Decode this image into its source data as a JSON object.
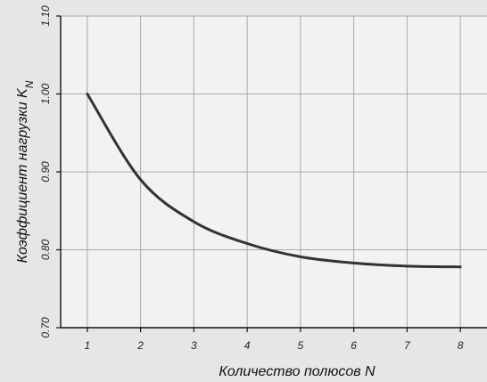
{
  "chart_data": {
    "type": "line",
    "xlabel": "Количество полюсов N",
    "ylabel_main": "Коэффициент нагрузки K",
    "ylabel_sub": "N",
    "x": [
      1,
      2,
      3,
      4,
      5,
      6,
      7,
      8
    ],
    "x_ticks": [
      "1",
      "2",
      "3",
      "4",
      "5",
      "6",
      "7",
      "8"
    ],
    "xlim": [
      0.5,
      8.5
    ],
    "y_ticks": [
      "0.70",
      "0.80",
      "0.90",
      "1.00",
      "1.10"
    ],
    "ylim": [
      0.7,
      1.1
    ],
    "grid": true,
    "series": [
      {
        "values": [
          1.0,
          0.89,
          0.836,
          0.808,
          0.791,
          0.783,
          0.779,
          0.778
        ],
        "color": "#333333"
      }
    ]
  }
}
